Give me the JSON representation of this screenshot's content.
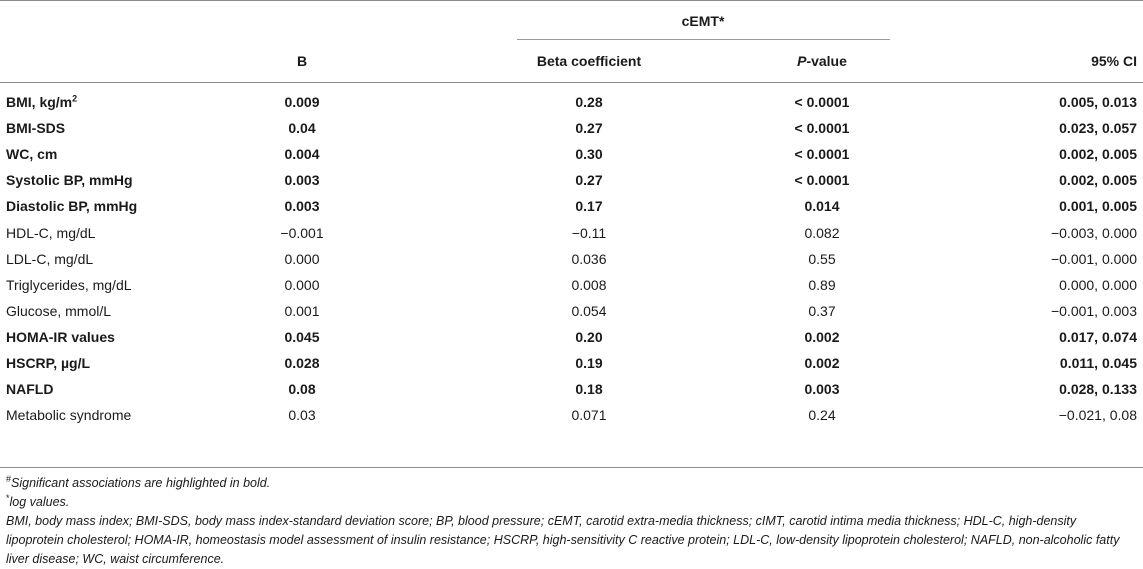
{
  "table": {
    "group_header": "cEMT*",
    "columns": [
      "",
      "B",
      "Beta coefficient",
      "P-value",
      "95% CI"
    ],
    "pvalue_prefix": "P",
    "pvalue_suffix": "-value",
    "rows": [
      {
        "label": "BMI, kg/m",
        "label_sup": "2",
        "b": "0.009",
        "beta": "0.28",
        "p": "< 0.0001",
        "ci": "0.005, 0.013",
        "bold": true
      },
      {
        "label": "BMI-SDS",
        "b": "0.04",
        "beta": "0.27",
        "p": "< 0.0001",
        "ci": "0.023, 0.057",
        "bold": true
      },
      {
        "label": "WC, cm",
        "b": "0.004",
        "beta": "0.30",
        "p": "< 0.0001",
        "ci": "0.002, 0.005",
        "bold": true
      },
      {
        "label": "Systolic BP, mmHg",
        "b": "0.003",
        "beta": "0.27",
        "p": "< 0.0001",
        "ci": "0.002, 0.005",
        "bold": true
      },
      {
        "label": "Diastolic BP, mmHg",
        "b": "0.003",
        "beta": "0.17",
        "p": "0.014",
        "ci": "0.001, 0.005",
        "bold": true
      },
      {
        "label": "HDL-C, mg/dL",
        "b": "−0.001",
        "beta": "−0.11",
        "p": "0.082",
        "ci": "−0.003, 0.000",
        "bold": false
      },
      {
        "label": "LDL-C, mg/dL",
        "b": "0.000",
        "beta": "0.036",
        "p": "0.55",
        "ci": "−0.001, 0.000",
        "bold": false
      },
      {
        "label": "Triglycerides, mg/dL",
        "b": "0.000",
        "beta": "0.008",
        "p": "0.89",
        "ci": "0.000, 0.000",
        "bold": false
      },
      {
        "label": "Glucose, mmol/L",
        "b": "0.001",
        "beta": "0.054",
        "p": "0.37",
        "ci": "−0.001, 0.003",
        "bold": false
      },
      {
        "label": "HOMA-IR values",
        "b": "0.045",
        "beta": "0.20",
        "p": "0.002",
        "ci": "0.017, 0.074",
        "bold": true
      },
      {
        "label": "HSCRP, µg/L",
        "b": "0.028",
        "beta": "0.19",
        "p": "0.002",
        "ci": "0.011, 0.045",
        "bold": true
      },
      {
        "label": "NAFLD",
        "b": "0.08",
        "beta": "0.18",
        "p": "0.003",
        "ci": "0.028, 0.133",
        "bold": true
      },
      {
        "label": "Metabolic syndrome",
        "b": "0.03",
        "beta": "0.071",
        "p": "0.24",
        "ci": "−0.021, 0.08",
        "bold": false
      }
    ]
  },
  "footnotes": {
    "significant_symbol": "#",
    "significant": "Significant associations are highlighted in bold.",
    "log_symbol": "*",
    "log": "log values.",
    "abbreviations": "BMI, body mass index; BMI-SDS, body mass index-standard deviation score; BP, blood pressure; cEMT, carotid extra-media thickness; cIMT, carotid intima media thickness; HDL-C, high-density lipoprotein cholesterol; HOMA-IR, homeostasis model assessment of insulin resistance; HSCRP, high-sensitivity C reactive protein; LDL-C, low-density lipoprotein cholesterol; NAFLD, non-alcoholic fatty liver disease; WC, waist circumference."
  }
}
